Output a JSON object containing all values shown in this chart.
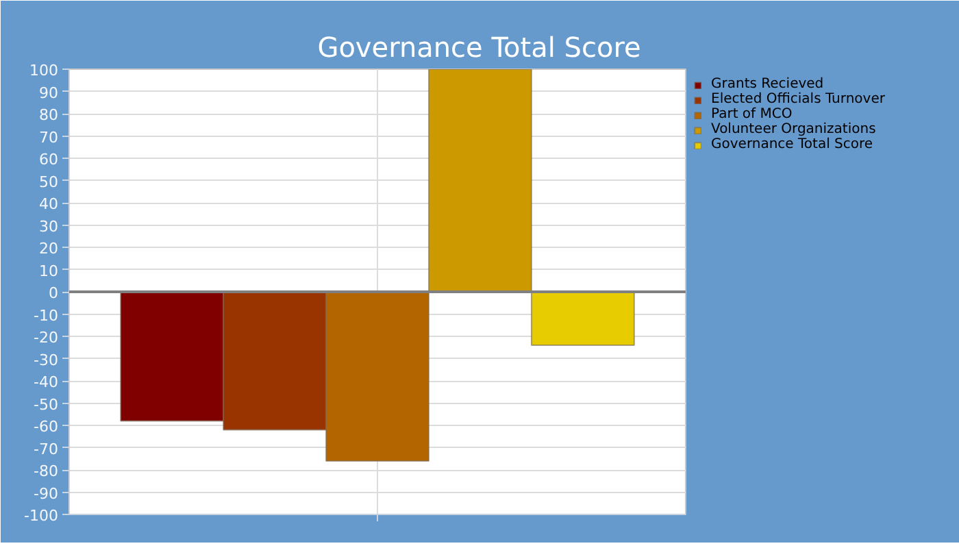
{
  "chart_data": {
    "type": "bar",
    "title": "Governance Total Score",
    "categories": [
      null
    ],
    "series": [
      {
        "name": "Grants Recieved",
        "color": "#800000",
        "values": [
          -58
        ]
      },
      {
        "name": "Elected Officials Turnover",
        "color": "#993300",
        "values": [
          -62
        ]
      },
      {
        "name": "Part of MCO",
        "color": "#b36600",
        "values": [
          -76
        ]
      },
      {
        "name": "Volunteer Organizations",
        "color": "#cc9900",
        "values": [
          100
        ]
      },
      {
        "name": "Governance Total Score",
        "color": "#e6cc00",
        "values": [
          -24
        ]
      }
    ],
    "ylim": [
      -100,
      100
    ],
    "yticks": [
      -100,
      -90,
      -80,
      -70,
      -60,
      -50,
      -40,
      -30,
      -20,
      -10,
      0,
      10,
      20,
      30,
      40,
      50,
      60,
      70,
      80,
      90,
      100
    ],
    "grid": true,
    "legend": "right",
    "ref_lines": [
      {
        "axis": "y",
        "value": 0,
        "color": "#808080"
      }
    ]
  }
}
